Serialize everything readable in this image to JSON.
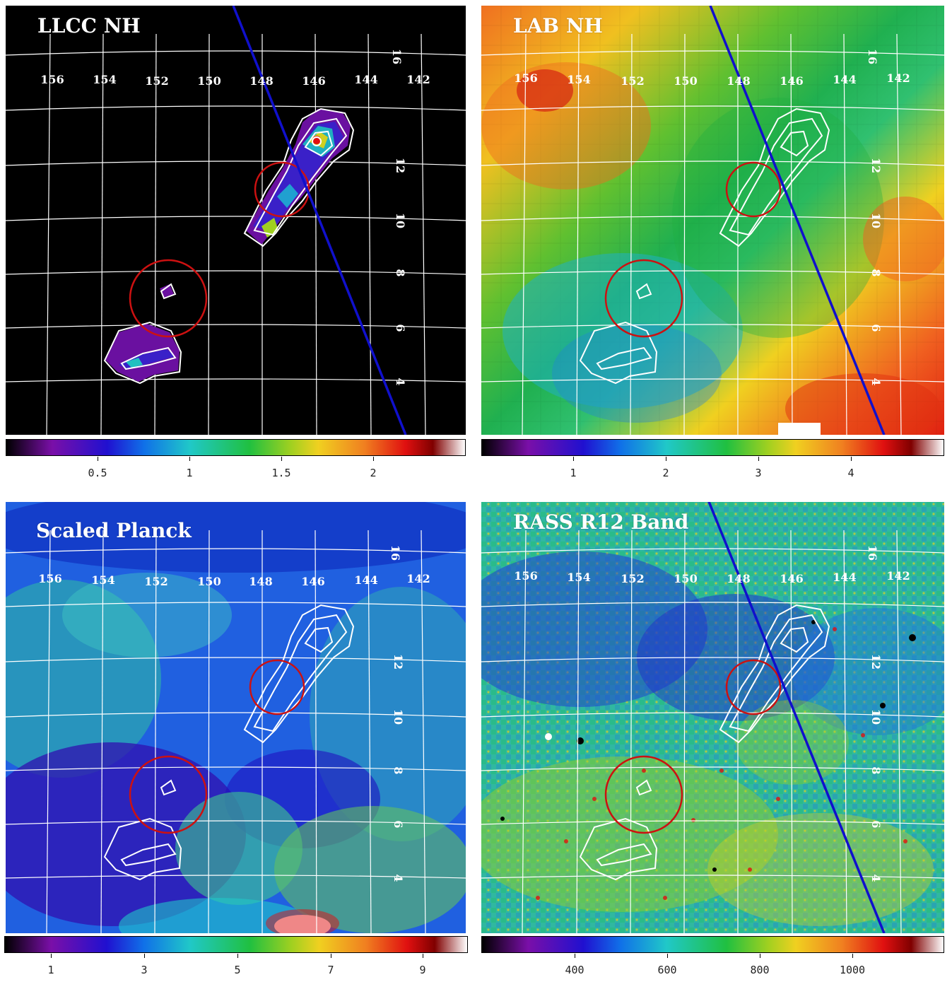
{
  "panels": [
    {
      "title": "LLCC NH",
      "colorbar": {
        "ticks": [
          "0.5",
          "1",
          "1.5",
          "2"
        ]
      }
    },
    {
      "title": "LAB NH",
      "colorbar": {
        "ticks": [
          "1",
          "2",
          "3",
          "4"
        ]
      }
    },
    {
      "title": "Scaled Planck",
      "colorbar": {
        "ticks": [
          "1",
          "3",
          "5",
          "7",
          "9"
        ]
      }
    },
    {
      "title": "RASS R12 Band",
      "colorbar": {
        "ticks": [
          "400",
          "600",
          "800",
          "1000"
        ]
      }
    }
  ],
  "longitude_labels": [
    "156",
    "154",
    "152",
    "150",
    "148",
    "146",
    "144",
    "142"
  ],
  "latitude_labels": [
    "16",
    "12",
    "10",
    "8",
    "6",
    "4"
  ],
  "colormap": [
    "#000000",
    "#7a0fa8",
    "#2010d0",
    "#1070e8",
    "#20c8c8",
    "#20c040",
    "#a0d020",
    "#f0d020",
    "#f08020",
    "#e01010",
    "#800000",
    "#ffffff"
  ],
  "overlay_colors": {
    "contour": "#ffffff",
    "circle": "#cc1111",
    "track": "#1010cc"
  }
}
